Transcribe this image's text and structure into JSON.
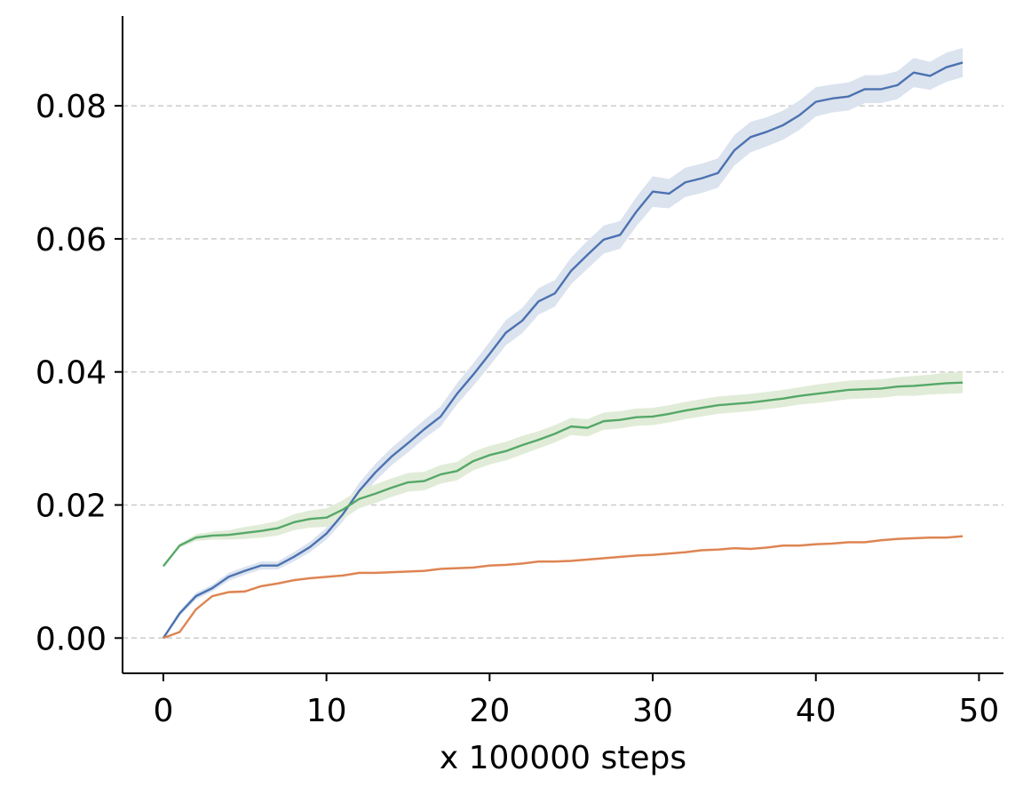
{
  "chart_data": {
    "type": "line",
    "title": "",
    "xlabel": "x 100000 steps",
    "ylabel": "",
    "xlim": [
      -2.5,
      51.5
    ],
    "ylim": [
      -0.0053,
      0.0935
    ],
    "xticks": [
      0,
      10,
      20,
      30,
      40,
      50
    ],
    "xtick_labels": [
      "0",
      "10",
      "20",
      "30",
      "40",
      "50"
    ],
    "yticks": [
      0.0,
      0.02,
      0.04,
      0.06,
      0.08
    ],
    "ytick_labels": [
      "0.00",
      "0.02",
      "0.04",
      "0.06",
      "0.08"
    ],
    "grid": "horizontal dashed",
    "legend": "none",
    "x": [
      0,
      1,
      2,
      3,
      4,
      5,
      6,
      7,
      8,
      9,
      10,
      11,
      12,
      13,
      14,
      15,
      16,
      17,
      18,
      19,
      20,
      21,
      22,
      23,
      24,
      25,
      26,
      27,
      28,
      29,
      30,
      31,
      32,
      33,
      34,
      35,
      36,
      37,
      38,
      39,
      40,
      41,
      42,
      43,
      44,
      45,
      46,
      47,
      48,
      49
    ],
    "series": [
      {
        "color": "#4c72b0",
        "band_color": "#dbe3ef",
        "values": [
          0.0,
          0.0037,
          0.0063,
          0.0075,
          0.0092,
          0.0101,
          0.0109,
          0.0109,
          0.0122,
          0.0137,
          0.0157,
          0.0186,
          0.0221,
          0.0249,
          0.0273,
          0.0293,
          0.0314,
          0.0333,
          0.0367,
          0.0396,
          0.0427,
          0.0459,
          0.0477,
          0.0506,
          0.0518,
          0.0552,
          0.0576,
          0.0599,
          0.0606,
          0.0641,
          0.0671,
          0.0668,
          0.0685,
          0.0691,
          0.0699,
          0.0733,
          0.0753,
          0.0761,
          0.0771,
          0.0786,
          0.0806,
          0.0811,
          0.0814,
          0.0825,
          0.0825,
          0.0831,
          0.085,
          0.0845,
          0.0858,
          0.0865
        ],
        "band": [
          0.0002,
          0.0004,
          0.0005,
          0.0005,
          0.0006,
          0.0006,
          0.0006,
          0.0006,
          0.0007,
          0.0008,
          0.0009,
          0.0011,
          0.0012,
          0.0013,
          0.0013,
          0.0014,
          0.0014,
          0.0015,
          0.0016,
          0.0017,
          0.0018,
          0.0019,
          0.0019,
          0.002,
          0.002,
          0.002,
          0.0021,
          0.0021,
          0.0021,
          0.0022,
          0.0023,
          0.0022,
          0.0022,
          0.0022,
          0.0022,
          0.0023,
          0.0023,
          0.0022,
          0.0022,
          0.0022,
          0.0022,
          0.0021,
          0.0021,
          0.0021,
          0.0021,
          0.0021,
          0.0022,
          0.0021,
          0.0022,
          0.0022
        ]
      },
      {
        "color": "#dd8452",
        "band_color": "#fbe8dc",
        "values": [
          0.0,
          0.0009,
          0.0043,
          0.0063,
          0.0069,
          0.007,
          0.0078,
          0.0082,
          0.0087,
          0.009,
          0.0092,
          0.0094,
          0.0098,
          0.0098,
          0.0099,
          0.01,
          0.0101,
          0.0104,
          0.0105,
          0.0106,
          0.0109,
          0.011,
          0.0112,
          0.0115,
          0.0115,
          0.0116,
          0.0118,
          0.012,
          0.0122,
          0.0124,
          0.0125,
          0.0127,
          0.0129,
          0.0132,
          0.0133,
          0.0135,
          0.0134,
          0.0136,
          0.0139,
          0.0139,
          0.0141,
          0.0142,
          0.0144,
          0.0144,
          0.0147,
          0.0149,
          0.015,
          0.0151,
          0.0151,
          0.0153
        ],
        "band": [
          0.0001,
          0.0001,
          0.0002,
          0.0002,
          0.0002,
          0.0002,
          0.0002,
          0.0002,
          0.0002,
          0.0002,
          0.0002,
          0.0002,
          0.0002,
          0.0002,
          0.0002,
          0.0002,
          0.0002,
          0.0002,
          0.0002,
          0.0002,
          0.0002,
          0.0002,
          0.0002,
          0.0002,
          0.0002,
          0.0002,
          0.0002,
          0.0002,
          0.0002,
          0.0002,
          0.0002,
          0.0002,
          0.0002,
          0.0002,
          0.0002,
          0.0002,
          0.0002,
          0.0002,
          0.0002,
          0.0002,
          0.0002,
          0.0002,
          0.0002,
          0.0002,
          0.0002,
          0.0002,
          0.0002,
          0.0002,
          0.0002,
          0.0002
        ]
      },
      {
        "color": "#55a868",
        "band_color": "#e1ecd8",
        "values": [
          0.0108,
          0.0139,
          0.0151,
          0.0154,
          0.0155,
          0.0158,
          0.0161,
          0.0165,
          0.0174,
          0.0179,
          0.0181,
          0.0193,
          0.0209,
          0.0217,
          0.0226,
          0.0234,
          0.0236,
          0.0246,
          0.0251,
          0.0266,
          0.0275,
          0.0281,
          0.029,
          0.0298,
          0.0307,
          0.0318,
          0.0316,
          0.0326,
          0.0328,
          0.0332,
          0.0333,
          0.0337,
          0.0342,
          0.0346,
          0.035,
          0.0352,
          0.0354,
          0.0357,
          0.036,
          0.0364,
          0.0367,
          0.037,
          0.0373,
          0.0374,
          0.0375,
          0.0378,
          0.0379,
          0.0381,
          0.0383,
          0.0384
        ],
        "band": [
          0.0001,
          0.0003,
          0.0005,
          0.0006,
          0.0007,
          0.0009,
          0.001,
          0.0011,
          0.0012,
          0.0013,
          0.0014,
          0.0014,
          0.0014,
          0.0014,
          0.0014,
          0.0014,
          0.0014,
          0.0014,
          0.0014,
          0.0014,
          0.0014,
          0.0014,
          0.0014,
          0.0013,
          0.0013,
          0.0013,
          0.0013,
          0.0013,
          0.0013,
          0.0013,
          0.0013,
          0.0013,
          0.0013,
          0.0013,
          0.0013,
          0.0013,
          0.0013,
          0.0013,
          0.0013,
          0.0013,
          0.0014,
          0.0014,
          0.0014,
          0.0014,
          0.0014,
          0.0014,
          0.0015,
          0.0015,
          0.0016,
          0.0016
        ]
      }
    ]
  }
}
